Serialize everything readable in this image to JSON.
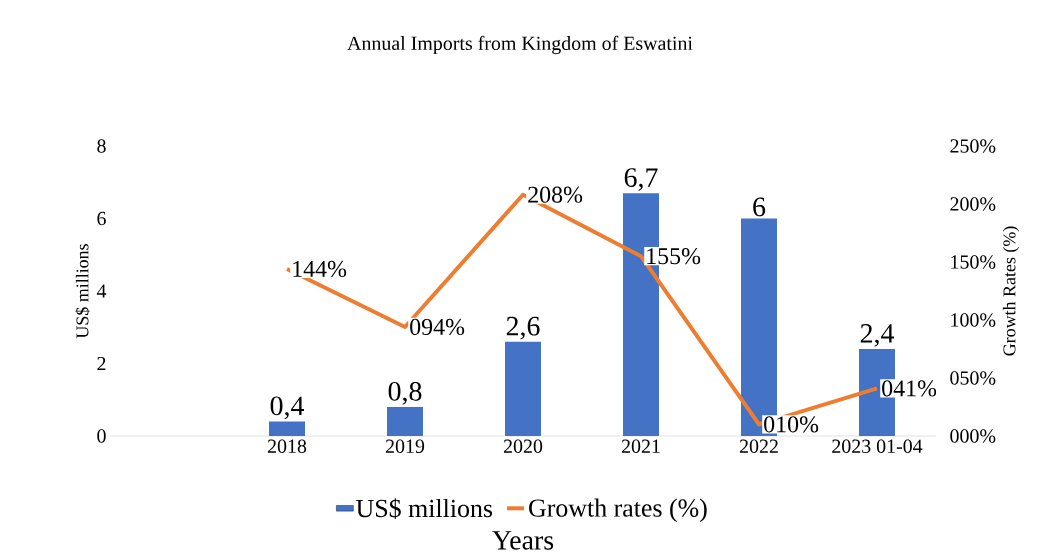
{
  "chart_data": {
    "type": "bar",
    "title": "Annual Imports from Kingdom of Eswatini",
    "xlabel": "Years",
    "ylabel": "US$ millions",
    "y2label": "Growth Rates (%)",
    "categories": [
      null,
      "2018",
      "2019",
      "2020",
      "2021",
      "2022",
      "2023 01-04"
    ],
    "series": [
      {
        "name": "US$ millions",
        "color": "#4472c4",
        "values": [
          null,
          0.4,
          0.8,
          2.6,
          6.7,
          6,
          2.4
        ],
        "value_labels": [
          null,
          "0,4",
          "0,8",
          "2,6",
          "6,7",
          "6",
          "2,4"
        ]
      },
      {
        "name": "Growth rates (%)",
        "type": "line",
        "axis": "y2",
        "color": "#ed7d31",
        "values": [
          null,
          144,
          94,
          208,
          155,
          10,
          41
        ],
        "value_labels": [
          null,
          "144%",
          "094%",
          "208%",
          "155%",
          "010%",
          "041%"
        ]
      }
    ],
    "ylim": [
      0,
      8
    ],
    "yticks": [
      0,
      2,
      4,
      6,
      8
    ],
    "y2lim": [
      0,
      250
    ],
    "y2ticks": [
      {
        "value": 0,
        "label": "000%"
      },
      {
        "value": 50,
        "label": "050%"
      },
      {
        "value": 100,
        "label": "100%"
      },
      {
        "value": 150,
        "label": "150%"
      },
      {
        "value": 200,
        "label": "200%"
      },
      {
        "value": 250,
        "label": "250%"
      }
    ],
    "legend": "bottom",
    "grid": false
  }
}
